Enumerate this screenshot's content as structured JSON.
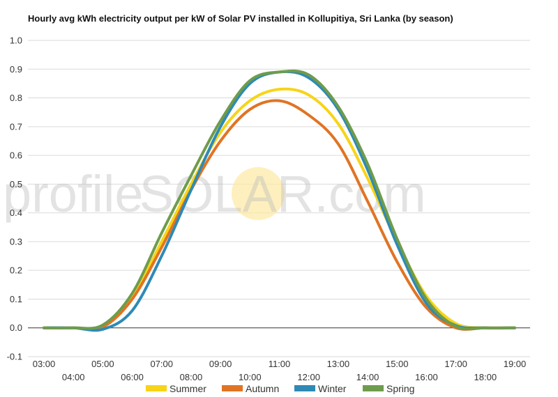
{
  "chart_data": {
    "type": "line",
    "title": "Hourly avg kWh electricity output per kW of Solar PV installed in Kollupitiya, Sri Lanka (by season)",
    "xlabel": "",
    "ylabel": "",
    "ylim": [
      -0.1,
      1.0
    ],
    "y_ticks": [
      "-0.1",
      "0.0",
      "0.1",
      "0.2",
      "0.3",
      "0.4",
      "0.5",
      "0.6",
      "0.7",
      "0.8",
      "0.9",
      "1.0"
    ],
    "x_ticks": [
      "03:00",
      "04:00",
      "05:00",
      "06:00",
      "07:00",
      "08:00",
      "09:00",
      "10:00",
      "11:00",
      "12:00",
      "13:00",
      "14:00",
      "15:00",
      "16:00",
      "17:00",
      "18:00",
      "19:00"
    ],
    "x": [
      "03:00",
      "04:00",
      "05:00",
      "06:00",
      "07:00",
      "08:00",
      "09:00",
      "10:00",
      "11:00",
      "12:00",
      "13:00",
      "14:00",
      "15:00",
      "16:00",
      "17:00",
      "18:00",
      "19:00"
    ],
    "grid": true,
    "legend_position": "bottom",
    "series": [
      {
        "name": "Summer",
        "color": "#f7d418",
        "values": [
          0.0,
          0.0,
          0.005,
          0.11,
          0.3,
          0.5,
          0.68,
          0.79,
          0.83,
          0.81,
          0.71,
          0.52,
          0.3,
          0.11,
          0.015,
          0.0,
          0.0
        ]
      },
      {
        "name": "Autumn",
        "color": "#e07424",
        "values": [
          0.0,
          0.0,
          0.003,
          0.1,
          0.28,
          0.48,
          0.65,
          0.76,
          0.79,
          0.74,
          0.64,
          0.44,
          0.23,
          0.07,
          0.0,
          0.0,
          0.0
        ]
      },
      {
        "name": "Winter",
        "color": "#2e8ab6",
        "values": [
          0.0,
          0.0,
          -0.005,
          0.06,
          0.25,
          0.48,
          0.7,
          0.85,
          0.89,
          0.87,
          0.76,
          0.55,
          0.29,
          0.085,
          0.008,
          0.0,
          0.0
        ]
      },
      {
        "name": "Spring",
        "color": "#6e9c4c",
        "values": [
          0.0,
          0.0,
          0.01,
          0.12,
          0.33,
          0.53,
          0.72,
          0.86,
          0.89,
          0.88,
          0.77,
          0.57,
          0.31,
          0.1,
          0.005,
          0.0,
          0.0
        ]
      }
    ]
  },
  "watermark": {
    "left": "profile",
    "right": "SOLAR.com",
    "sun_color": "#fde9a8"
  }
}
